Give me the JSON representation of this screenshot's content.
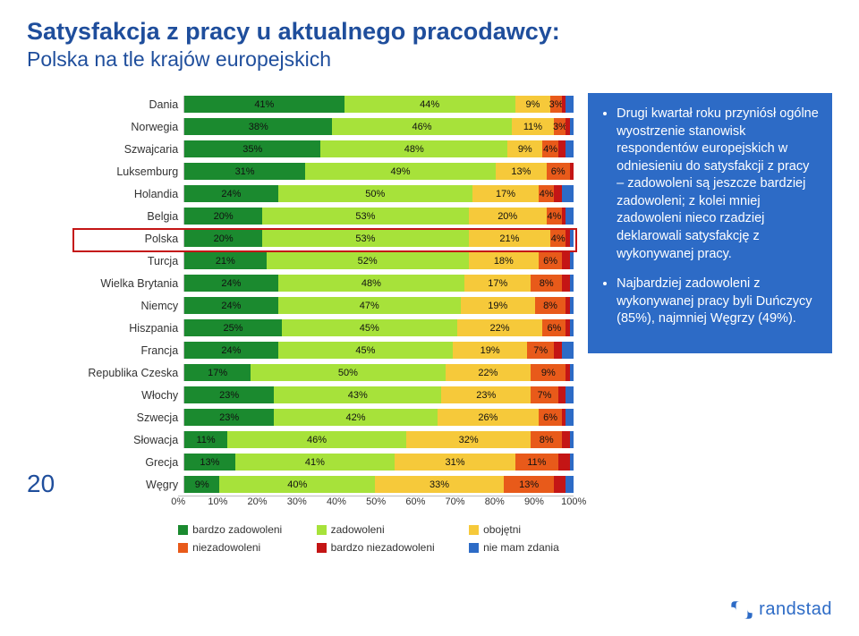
{
  "title_main": "Satysfakcja z pracy u aktualnego pracodawcy:",
  "title_sub": "Polska na tle krajów europejskich",
  "page_number": "20",
  "colors": {
    "bardzo_zadowoleni": "#1b8a2f",
    "zadowoleni": "#a7e23a",
    "obojetni": "#f6c93a",
    "niezadowoleni": "#e85a1a",
    "bardzo_niezadowoleni": "#c41515",
    "nie_mam_zdania": "#2d6bc6",
    "title": "#1f4e9c",
    "side_bg": "#2d6bc6",
    "highlight_border": "#c41515"
  },
  "legend": [
    {
      "label": "bardzo zadowoleni",
      "color_key": "bardzo_zadowoleni"
    },
    {
      "label": "zadowoleni",
      "color_key": "zadowoleni"
    },
    {
      "label": "obojętni",
      "color_key": "obojetni"
    },
    {
      "label": "niezadowoleni",
      "color_key": "niezadowoleni"
    },
    {
      "label": "bardzo niezadowoleni",
      "color_key": "bardzo_niezadowoleni"
    },
    {
      "label": "nie mam zdania",
      "color_key": "nie_mam_zdania"
    }
  ],
  "axis": {
    "min": 0,
    "max": 100,
    "step": 10,
    "suffix": "%"
  },
  "highlight_row_index": 6,
  "countries": [
    {
      "name": "Dania",
      "seg": [
        {
          "v": 41,
          "t": "41%"
        },
        {
          "v": 44,
          "t": "44%"
        },
        {
          "v": 9,
          "t": "9%"
        },
        {
          "v": 3,
          "t": "3%"
        },
        {
          "v": 1,
          "t": ""
        },
        {
          "v": 2,
          "t": ""
        }
      ]
    },
    {
      "name": "Norwegia",
      "seg": [
        {
          "v": 38,
          "t": "38%"
        },
        {
          "v": 46,
          "t": "46%"
        },
        {
          "v": 11,
          "t": "11%"
        },
        {
          "v": 3,
          "t": "3%"
        },
        {
          "v": 1,
          "t": ""
        },
        {
          "v": 1,
          "t": ""
        }
      ]
    },
    {
      "name": "Szwajcaria",
      "seg": [
        {
          "v": 35,
          "t": "35%"
        },
        {
          "v": 48,
          "t": "48%"
        },
        {
          "v": 9,
          "t": "9%"
        },
        {
          "v": 4,
          "t": "4%"
        },
        {
          "v": 2,
          "t": ""
        },
        {
          "v": 2,
          "t": ""
        }
      ]
    },
    {
      "name": "Luksemburg",
      "seg": [
        {
          "v": 31,
          "t": "31%"
        },
        {
          "v": 49,
          "t": "49%"
        },
        {
          "v": 13,
          "t": "13%"
        },
        {
          "v": 6,
          "t": "6%"
        },
        {
          "v": 1,
          "t": ""
        },
        {
          "v": 0,
          "t": ""
        }
      ]
    },
    {
      "name": "Holandia",
      "seg": [
        {
          "v": 24,
          "t": "24%"
        },
        {
          "v": 50,
          "t": "50%"
        },
        {
          "v": 17,
          "t": "17%"
        },
        {
          "v": 4,
          "t": "4%"
        },
        {
          "v": 2,
          "t": ""
        },
        {
          "v": 3,
          "t": ""
        }
      ]
    },
    {
      "name": "Belgia",
      "seg": [
        {
          "v": 20,
          "t": "20%"
        },
        {
          "v": 53,
          "t": "53%"
        },
        {
          "v": 20,
          "t": "20%"
        },
        {
          "v": 4,
          "t": "4%"
        },
        {
          "v": 1,
          "t": ""
        },
        {
          "v": 2,
          "t": ""
        }
      ]
    },
    {
      "name": "Polska",
      "seg": [
        {
          "v": 20,
          "t": "20%"
        },
        {
          "v": 53,
          "t": "53%"
        },
        {
          "v": 21,
          "t": "21%"
        },
        {
          "v": 4,
          "t": "4%"
        },
        {
          "v": 1,
          "t": ""
        },
        {
          "v": 1,
          "t": ""
        }
      ]
    },
    {
      "name": "Turcja",
      "seg": [
        {
          "v": 21,
          "t": "21%"
        },
        {
          "v": 52,
          "t": "52%"
        },
        {
          "v": 18,
          "t": "18%"
        },
        {
          "v": 6,
          "t": "6%"
        },
        {
          "v": 2,
          "t": ""
        },
        {
          "v": 1,
          "t": ""
        }
      ]
    },
    {
      "name": "Wielka Brytania",
      "seg": [
        {
          "v": 24,
          "t": "24%"
        },
        {
          "v": 48,
          "t": "48%"
        },
        {
          "v": 17,
          "t": "17%"
        },
        {
          "v": 8,
          "t": "8%"
        },
        {
          "v": 2,
          "t": ""
        },
        {
          "v": 1,
          "t": ""
        }
      ]
    },
    {
      "name": "Niemcy",
      "seg": [
        {
          "v": 24,
          "t": "24%"
        },
        {
          "v": 47,
          "t": "47%"
        },
        {
          "v": 19,
          "t": "19%"
        },
        {
          "v": 8,
          "t": "8%"
        },
        {
          "v": 1,
          "t": ""
        },
        {
          "v": 1,
          "t": ""
        }
      ]
    },
    {
      "name": "Hiszpania",
      "seg": [
        {
          "v": 25,
          "t": "25%"
        },
        {
          "v": 45,
          "t": "45%"
        },
        {
          "v": 22,
          "t": "22%"
        },
        {
          "v": 6,
          "t": "6%"
        },
        {
          "v": 1,
          "t": ""
        },
        {
          "v": 1,
          "t": ""
        }
      ]
    },
    {
      "name": "Francja",
      "seg": [
        {
          "v": 24,
          "t": "24%"
        },
        {
          "v": 45,
          "t": "45%"
        },
        {
          "v": 19,
          "t": "19%"
        },
        {
          "v": 7,
          "t": "7%"
        },
        {
          "v": 2,
          "t": ""
        },
        {
          "v": 3,
          "t": ""
        }
      ]
    },
    {
      "name": "Republika Czeska",
      "seg": [
        {
          "v": 17,
          "t": "17%"
        },
        {
          "v": 50,
          "t": "50%"
        },
        {
          "v": 22,
          "t": "22%"
        },
        {
          "v": 9,
          "t": "9%"
        },
        {
          "v": 1,
          "t": ""
        },
        {
          "v": 1,
          "t": ""
        }
      ]
    },
    {
      "name": "Włochy",
      "seg": [
        {
          "v": 23,
          "t": "23%"
        },
        {
          "v": 43,
          "t": "43%"
        },
        {
          "v": 23,
          "t": "23%"
        },
        {
          "v": 7,
          "t": "7%"
        },
        {
          "v": 2,
          "t": ""
        },
        {
          "v": 2,
          "t": ""
        }
      ]
    },
    {
      "name": "Szwecja",
      "seg": [
        {
          "v": 23,
          "t": "23%"
        },
        {
          "v": 42,
          "t": "42%"
        },
        {
          "v": 26,
          "t": "26%"
        },
        {
          "v": 6,
          "t": "6%"
        },
        {
          "v": 1,
          "t": ""
        },
        {
          "v": 2,
          "t": ""
        }
      ]
    },
    {
      "name": "Słowacja",
      "seg": [
        {
          "v": 11,
          "t": "11%"
        },
        {
          "v": 46,
          "t": "46%"
        },
        {
          "v": 32,
          "t": "32%"
        },
        {
          "v": 8,
          "t": "8%"
        },
        {
          "v": 2,
          "t": ""
        },
        {
          "v": 1,
          "t": ""
        }
      ]
    },
    {
      "name": "Grecja",
      "seg": [
        {
          "v": 13,
          "t": "13%"
        },
        {
          "v": 41,
          "t": "41%"
        },
        {
          "v": 31,
          "t": "31%"
        },
        {
          "v": 11,
          "t": "11%"
        },
        {
          "v": 3,
          "t": ""
        },
        {
          "v": 1,
          "t": ""
        }
      ]
    },
    {
      "name": "Węgry",
      "seg": [
        {
          "v": 9,
          "t": "9%"
        },
        {
          "v": 40,
          "t": "40%"
        },
        {
          "v": 33,
          "t": "33%"
        },
        {
          "v": 13,
          "t": "13%"
        },
        {
          "v": 3,
          "t": ""
        },
        {
          "v": 2,
          "t": ""
        }
      ]
    }
  ],
  "bullets": [
    "Drugi kwartał roku przyniósł ogólne wyostrzenie stanowisk respondentów europejskich w odniesieniu do satysfakcji z pracy – zadowoleni są jeszcze bardziej zadowoleni; z kolei mniej zadowoleni nieco rzadziej deklarowali satysfakcję z wykonywanej pracy.",
    "Najbardziej zadowoleni z wykonywanej pracy byli Duńczycy (85%), najmniej Węgrzy (49%)."
  ],
  "logo_text": "randstad"
}
